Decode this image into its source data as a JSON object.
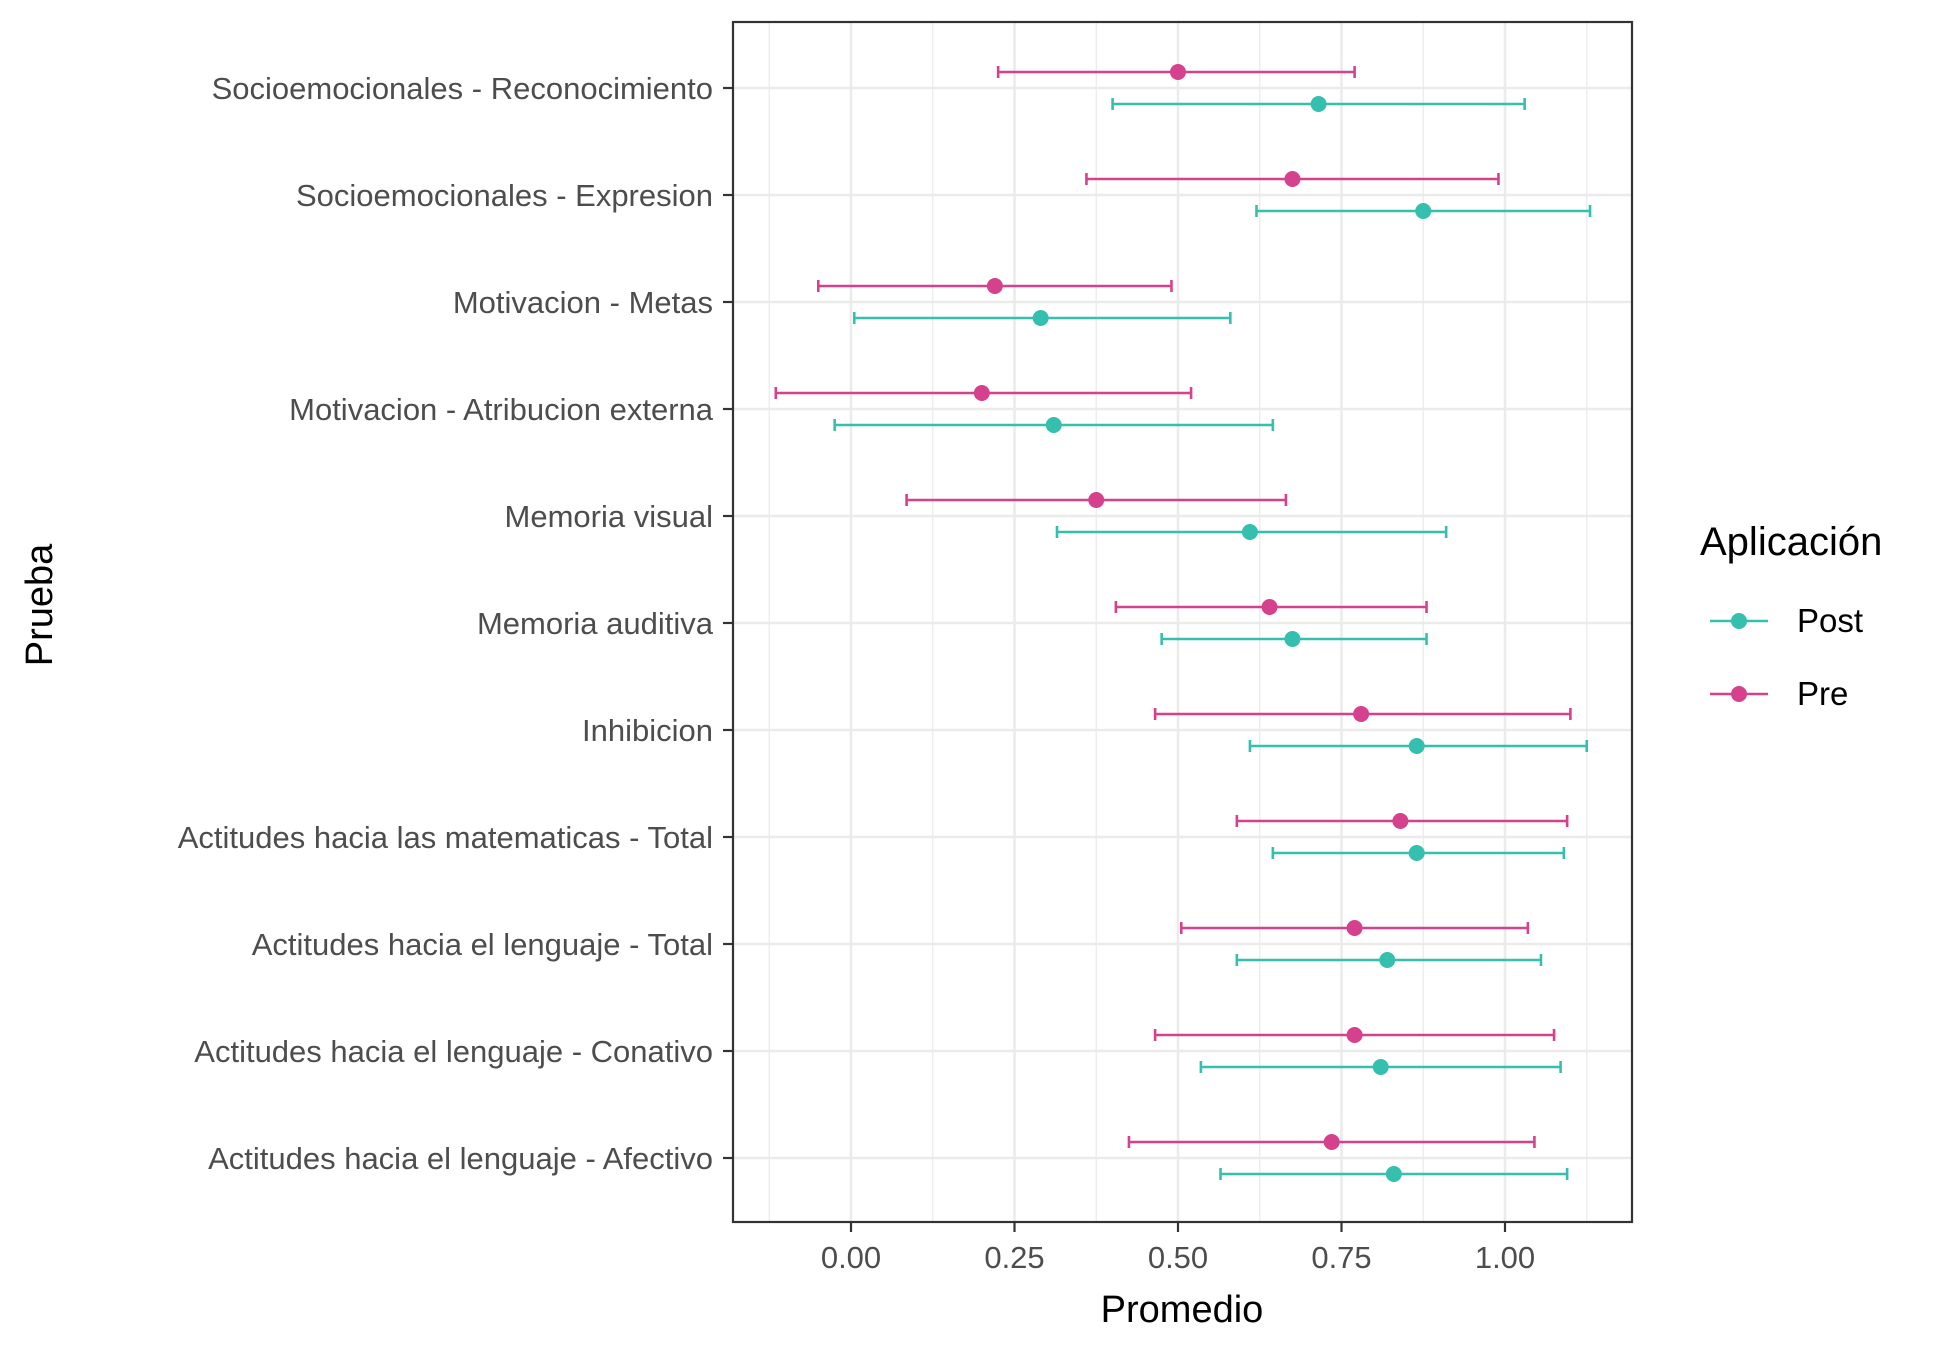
{
  "chart_data": {
    "type": "errorbar",
    "xlabel": "Promedio",
    "ylabel": "Prueba",
    "xlim": [
      -0.18,
      1.19
    ],
    "x_ticks": [
      0.0,
      0.25,
      0.5,
      0.75,
      1.0
    ],
    "x_tick_labels": [
      "0.00",
      "0.25",
      "0.50",
      "0.75",
      "1.00"
    ],
    "grid": true,
    "legend": {
      "title": "Aplicación",
      "placement": "right",
      "entries": [
        {
          "name": "Post",
          "color": "#35bfae"
        },
        {
          "name": "Pre",
          "color": "#d6418e"
        }
      ]
    },
    "categories": [
      "Socioemocionales - Reconocimiento",
      "Socioemocionales - Expresion",
      "Motivacion - Metas",
      "Motivacion - Atribucion externa",
      "Memoria visual",
      "Memoria auditiva",
      "Inhibicion",
      "Actitudes hacia las matematicas - Total",
      "Actitudes hacia el lenguaje - Total",
      "Actitudes hacia el lenguaje - Conativo",
      "Actitudes hacia el lenguaje - Afectivo"
    ],
    "series": [
      {
        "name": "Post",
        "color": "#35bfae",
        "mean": [
          0.715,
          0.875,
          0.29,
          0.31,
          0.61,
          0.675,
          0.865,
          0.865,
          0.82,
          0.81,
          0.83
        ],
        "lower": [
          0.4,
          0.62,
          0.005,
          -0.025,
          0.315,
          0.475,
          0.61,
          0.645,
          0.59,
          0.535,
          0.565
        ],
        "upper": [
          1.03,
          1.13,
          0.58,
          0.645,
          0.91,
          0.88,
          1.125,
          1.09,
          1.055,
          1.085,
          1.095
        ]
      },
      {
        "name": "Pre",
        "color": "#d6418e",
        "mean": [
          0.5,
          0.675,
          0.22,
          0.2,
          0.375,
          0.64,
          0.78,
          0.84,
          0.77,
          0.77,
          0.735
        ],
        "lower": [
          0.225,
          0.36,
          -0.05,
          -0.115,
          0.085,
          0.405,
          0.465,
          0.59,
          0.505,
          0.465,
          0.425
        ],
        "upper": [
          0.77,
          0.99,
          0.49,
          0.52,
          0.665,
          0.88,
          1.1,
          1.095,
          1.035,
          1.075,
          1.045
        ]
      }
    ]
  }
}
